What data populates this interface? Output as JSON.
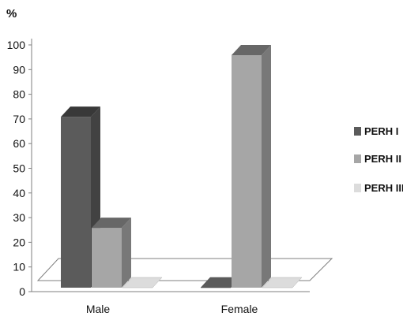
{
  "chart_data": {
    "type": "bar",
    "style": "3d-clustered",
    "unit_label": "%",
    "categories": [
      "Male",
      "Female"
    ],
    "series": [
      {
        "name": "PERH I",
        "values": [
          75,
          0
        ],
        "color": "#5b5b5b"
      },
      {
        "name": "PERH II",
        "values": [
          30,
          100
        ],
        "color": "#a6a6a6"
      },
      {
        "name": "PERH  III",
        "values": [
          0,
          0
        ],
        "color": "#dcdcdc"
      }
    ],
    "ylim": [
      0,
      100
    ],
    "yticks": [
      0,
      10,
      20,
      30,
      40,
      50,
      60,
      70,
      80,
      90,
      100
    ],
    "grid": false,
    "legend": "right"
  }
}
